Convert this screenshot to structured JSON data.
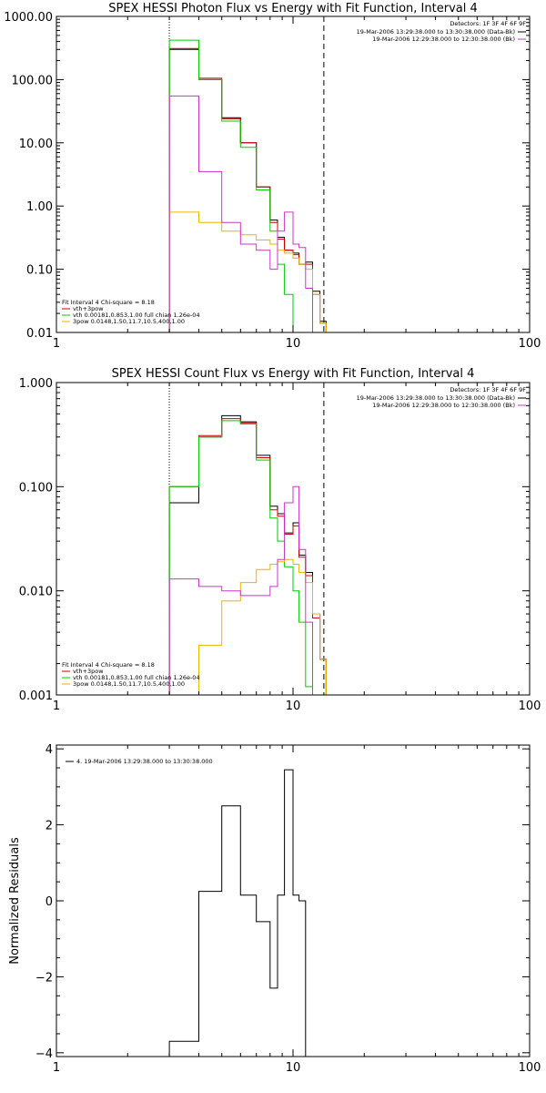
{
  "chart_data": [
    {
      "type": "line",
      "title": "SPEX HESSI Photon Flux vs Energy with Fit Function, Interval 4",
      "xscale": "log",
      "yscale": "log",
      "xlim": [
        1,
        100
      ],
      "ylim": [
        0.01,
        1000
      ],
      "x_ticks": [
        1,
        10,
        100
      ],
      "x_tick_labels": [
        "1",
        "10",
        "100"
      ],
      "y_ticks": [
        0.01,
        0.1,
        1,
        10,
        100,
        1000
      ],
      "y_tick_labels": [
        "0.01",
        "0.10",
        "1.00",
        "10.00",
        "100.00",
        "1000.00"
      ],
      "ylabel": "",
      "vlines": [
        {
          "x": 3.0,
          "style": "dotted"
        },
        {
          "x": 13.5,
          "style": "dashed"
        }
      ],
      "legend_top_right": {
        "detectors": "Detectors: 1F 3F 4F 6F 9F",
        "entries": [
          {
            "label": "19-Mar-2006 13:29:38.000 to 13:30:38.000 (Data-Bk)",
            "color": "#000000"
          },
          {
            "label": "19-Mar-2006 12:29:38.000 to 12:30:38.000 (Bk)",
            "color": "#cc33cc"
          }
        ]
      },
      "legend_bottom_left": {
        "header": "Fit Interval  4   Chi-square = 8.18",
        "entries": [
          {
            "label": "vth+3pow",
            "color": "#cc0000"
          },
          {
            "label": "vth 0.00181,0.853,1.00  full chian 1.26e-04",
            "color": "#00cc00"
          },
          {
            "label": "3pow 0.0148,1.50,11.7,10.5,400,1.00",
            "color": "#e6b800"
          }
        ]
      },
      "bin_edges": [
        3.0,
        4.0,
        5.0,
        6.0,
        7.0,
        8.0,
        8.6,
        9.2,
        10.0,
        10.6,
        11.3,
        12.1,
        13.0,
        13.8,
        14.8
      ],
      "series": [
        {
          "color": "#000000",
          "values": [
            300,
            100,
            25,
            10,
            2.0,
            0.6,
            0.32,
            0.2,
            0.18,
            0.12,
            0.13,
            0.045,
            0.015,
            null
          ]
        },
        {
          "color": "#cc0000",
          "values": [
            310,
            105,
            24,
            10,
            2.0,
            0.55,
            0.3,
            0.2,
            0.17,
            0.12,
            0.12,
            0.04,
            0.014,
            null
          ]
        },
        {
          "color": "#00cc00",
          "values": [
            420,
            100,
            22,
            8.5,
            1.8,
            0.4,
            0.12,
            0.04,
            0.01,
            null,
            null,
            null,
            null,
            null
          ]
        },
        {
          "color": "#e6b800",
          "values": [
            0.8,
            0.55,
            0.4,
            0.35,
            0.29,
            0.25,
            0.2,
            0.18,
            0.15,
            0.12,
            0.1,
            0.04,
            0.014,
            null
          ]
        },
        {
          "color": "#cc33cc",
          "values": [
            55,
            3.5,
            0.55,
            0.25,
            0.2,
            0.1,
            0.4,
            0.8,
            0.25,
            0.22,
            0.05,
            0.01,
            null,
            null
          ]
        }
      ]
    },
    {
      "type": "line",
      "title": "SPEX HESSI Count Flux vs Energy with Fit Function, Interval 4",
      "xscale": "log",
      "yscale": "log",
      "xlim": [
        1,
        100
      ],
      "ylim": [
        0.001,
        1
      ],
      "x_ticks": [
        1,
        10,
        100
      ],
      "x_tick_labels": [
        "1",
        "10",
        "100"
      ],
      "y_ticks": [
        0.001,
        0.01,
        0.1,
        1
      ],
      "y_tick_labels": [
        "0.001",
        "0.010",
        "0.100",
        "1.000"
      ],
      "ylabel": "",
      "vlines": [
        {
          "x": 3.0,
          "style": "dotted"
        },
        {
          "x": 13.5,
          "style": "dashed"
        }
      ],
      "legend_top_right": {
        "detectors": "Detectors: 1F 3F 4F 6F 9F",
        "entries": [
          {
            "label": "19-Mar-2006 13:29:38.000 to 13:30:38.000 (Data-Bk)",
            "color": "#000000"
          },
          {
            "label": "19-Mar-2006 12:29:38.000 to 12:30:38.000 (Bk)",
            "color": "#cc33cc"
          }
        ]
      },
      "legend_bottom_left": {
        "header": "Fit Interval  4   Chi-square = 8.18",
        "entries": [
          {
            "label": "vth+3pow",
            "color": "#cc0000"
          },
          {
            "label": "vth 0.00181,0.853,1.00  full chian 1.26e-04",
            "color": "#00cc00"
          },
          {
            "label": "3pow 0.0148,1.50,11.7,10.5,400,1.00",
            "color": "#e6b800"
          }
        ]
      },
      "bin_edges": [
        3.0,
        4.0,
        5.0,
        6.0,
        7.0,
        8.0,
        8.6,
        9.2,
        10.0,
        10.6,
        11.3,
        12.1,
        13.0,
        13.8,
        14.8
      ],
      "series": [
        {
          "color": "#000000",
          "values": [
            0.07,
            0.3,
            0.48,
            0.42,
            0.2,
            0.065,
            0.055,
            0.036,
            0.045,
            0.022,
            0.015,
            0.006,
            0.0022,
            null
          ]
        },
        {
          "color": "#cc0000",
          "values": [
            0.1,
            0.31,
            0.45,
            0.41,
            0.19,
            0.06,
            0.052,
            0.035,
            0.042,
            0.021,
            0.014,
            0.0055,
            0.0022,
            null
          ]
        },
        {
          "color": "#00cc00",
          "values": [
            0.1,
            0.3,
            0.43,
            0.4,
            0.18,
            0.05,
            0.03,
            0.017,
            0.01,
            0.005,
            0.0012,
            0.001,
            null,
            null
          ]
        },
        {
          "color": "#e6b800",
          "values": [
            0.001,
            0.003,
            0.008,
            0.012,
            0.016,
            0.018,
            0.019,
            0.02,
            0.018,
            0.015,
            0.012,
            0.006,
            0.0022,
            null
          ]
        },
        {
          "color": "#cc33cc",
          "values": [
            0.013,
            0.011,
            0.01,
            0.009,
            0.009,
            0.011,
            0.02,
            0.07,
            0.1,
            0.025,
            0.005,
            0.001,
            null,
            null
          ]
        }
      ]
    },
    {
      "type": "line",
      "title": "",
      "xscale": "log",
      "yscale": "linear",
      "xlim": [
        1,
        100
      ],
      "ylim": [
        -4.1,
        4.1
      ],
      "x_ticks": [
        1,
        10,
        100
      ],
      "x_tick_labels": [
        "1",
        "10",
        "100"
      ],
      "y_ticks": [
        -4,
        -2,
        0,
        2,
        4
      ],
      "y_tick_labels": [
        "−4",
        "−2",
        "0",
        "2",
        "4"
      ],
      "ylabel": "Normalized Residuals",
      "legend_top_left": {
        "entries": [
          {
            "label": "4. 19-Mar-2006 13:29:38.000 to 13:30:38.000",
            "color": "#000000"
          }
        ]
      },
      "bin_edges": [
        3.0,
        4.0,
        5.0,
        6.0,
        7.0,
        8.0,
        8.6,
        9.2,
        10.0,
        10.6,
        11.3,
        12.1,
        13.0,
        13.8
      ],
      "series": [
        {
          "color": "#000000",
          "values": [
            -3.7,
            0.25,
            2.5,
            0.15,
            -0.55,
            -2.3,
            0.15,
            3.45,
            0.15,
            0.0,
            null,
            null,
            null
          ]
        }
      ]
    }
  ]
}
